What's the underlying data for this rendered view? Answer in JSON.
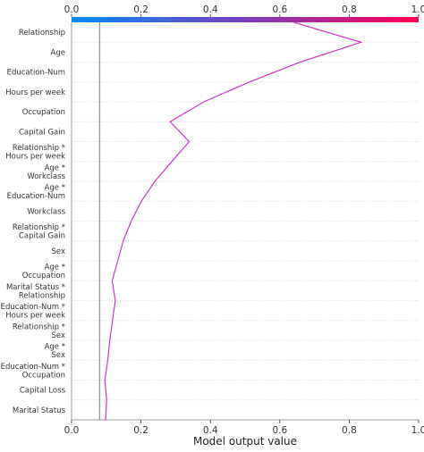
{
  "chart_data": {
    "type": "line",
    "subtype": "shap-decision-plot",
    "xlabel": "Model output value",
    "xlim": [
      0.0,
      1.0
    ],
    "x_ticks": [
      "0.0",
      "0.2",
      "0.4",
      "0.6",
      "0.8",
      "1.0"
    ],
    "x_tick_values": [
      0.0,
      0.2,
      0.4,
      0.6,
      0.8,
      1.0
    ],
    "base_value": 0.081,
    "colorbar": {
      "min": 0.0,
      "max": 1.0,
      "start_color": "#008bfb",
      "mid_color": "#7b3fc0",
      "end_color": "#ff0052"
    },
    "line_color": "#cc33cc",
    "grid": "dotted-horizontal",
    "features": [
      {
        "label": [
          "Relationship"
        ]
      },
      {
        "label": [
          "Age"
        ]
      },
      {
        "label": [
          "Education-Num"
        ]
      },
      {
        "label": [
          "Hours per week"
        ]
      },
      {
        "label": [
          "Occupation"
        ]
      },
      {
        "label": [
          "Capital Gain"
        ]
      },
      {
        "label": [
          "Relationship *",
          "Hours per week"
        ]
      },
      {
        "label": [
          "Age *",
          "Workclass"
        ]
      },
      {
        "label": [
          "Age *",
          "Education-Num"
        ]
      },
      {
        "label": [
          "Workclass"
        ]
      },
      {
        "label": [
          "Relationship *",
          "Capital Gain"
        ]
      },
      {
        "label": [
          "Sex"
        ]
      },
      {
        "label": [
          "Age *",
          "Occupation"
        ]
      },
      {
        "label": [
          "Marital Status *",
          "Relationship"
        ]
      },
      {
        "label": [
          "Education-Num *",
          "Hours per week"
        ]
      },
      {
        "label": [
          "Relationship *",
          "Sex"
        ]
      },
      {
        "label": [
          "Age *",
          "Sex"
        ]
      },
      {
        "label": [
          "Education-Num *",
          "Occupation"
        ]
      },
      {
        "label": [
          "Capital Loss"
        ]
      },
      {
        "label": [
          "Marital Status"
        ]
      }
    ],
    "path": [
      0.64,
      0.834,
      0.659,
      0.512,
      0.381,
      0.284,
      0.339,
      0.289,
      0.24,
      0.201,
      0.172,
      0.149,
      0.133,
      0.117,
      0.126,
      0.118,
      0.11,
      0.104,
      0.096,
      0.101,
      0.098
    ]
  }
}
